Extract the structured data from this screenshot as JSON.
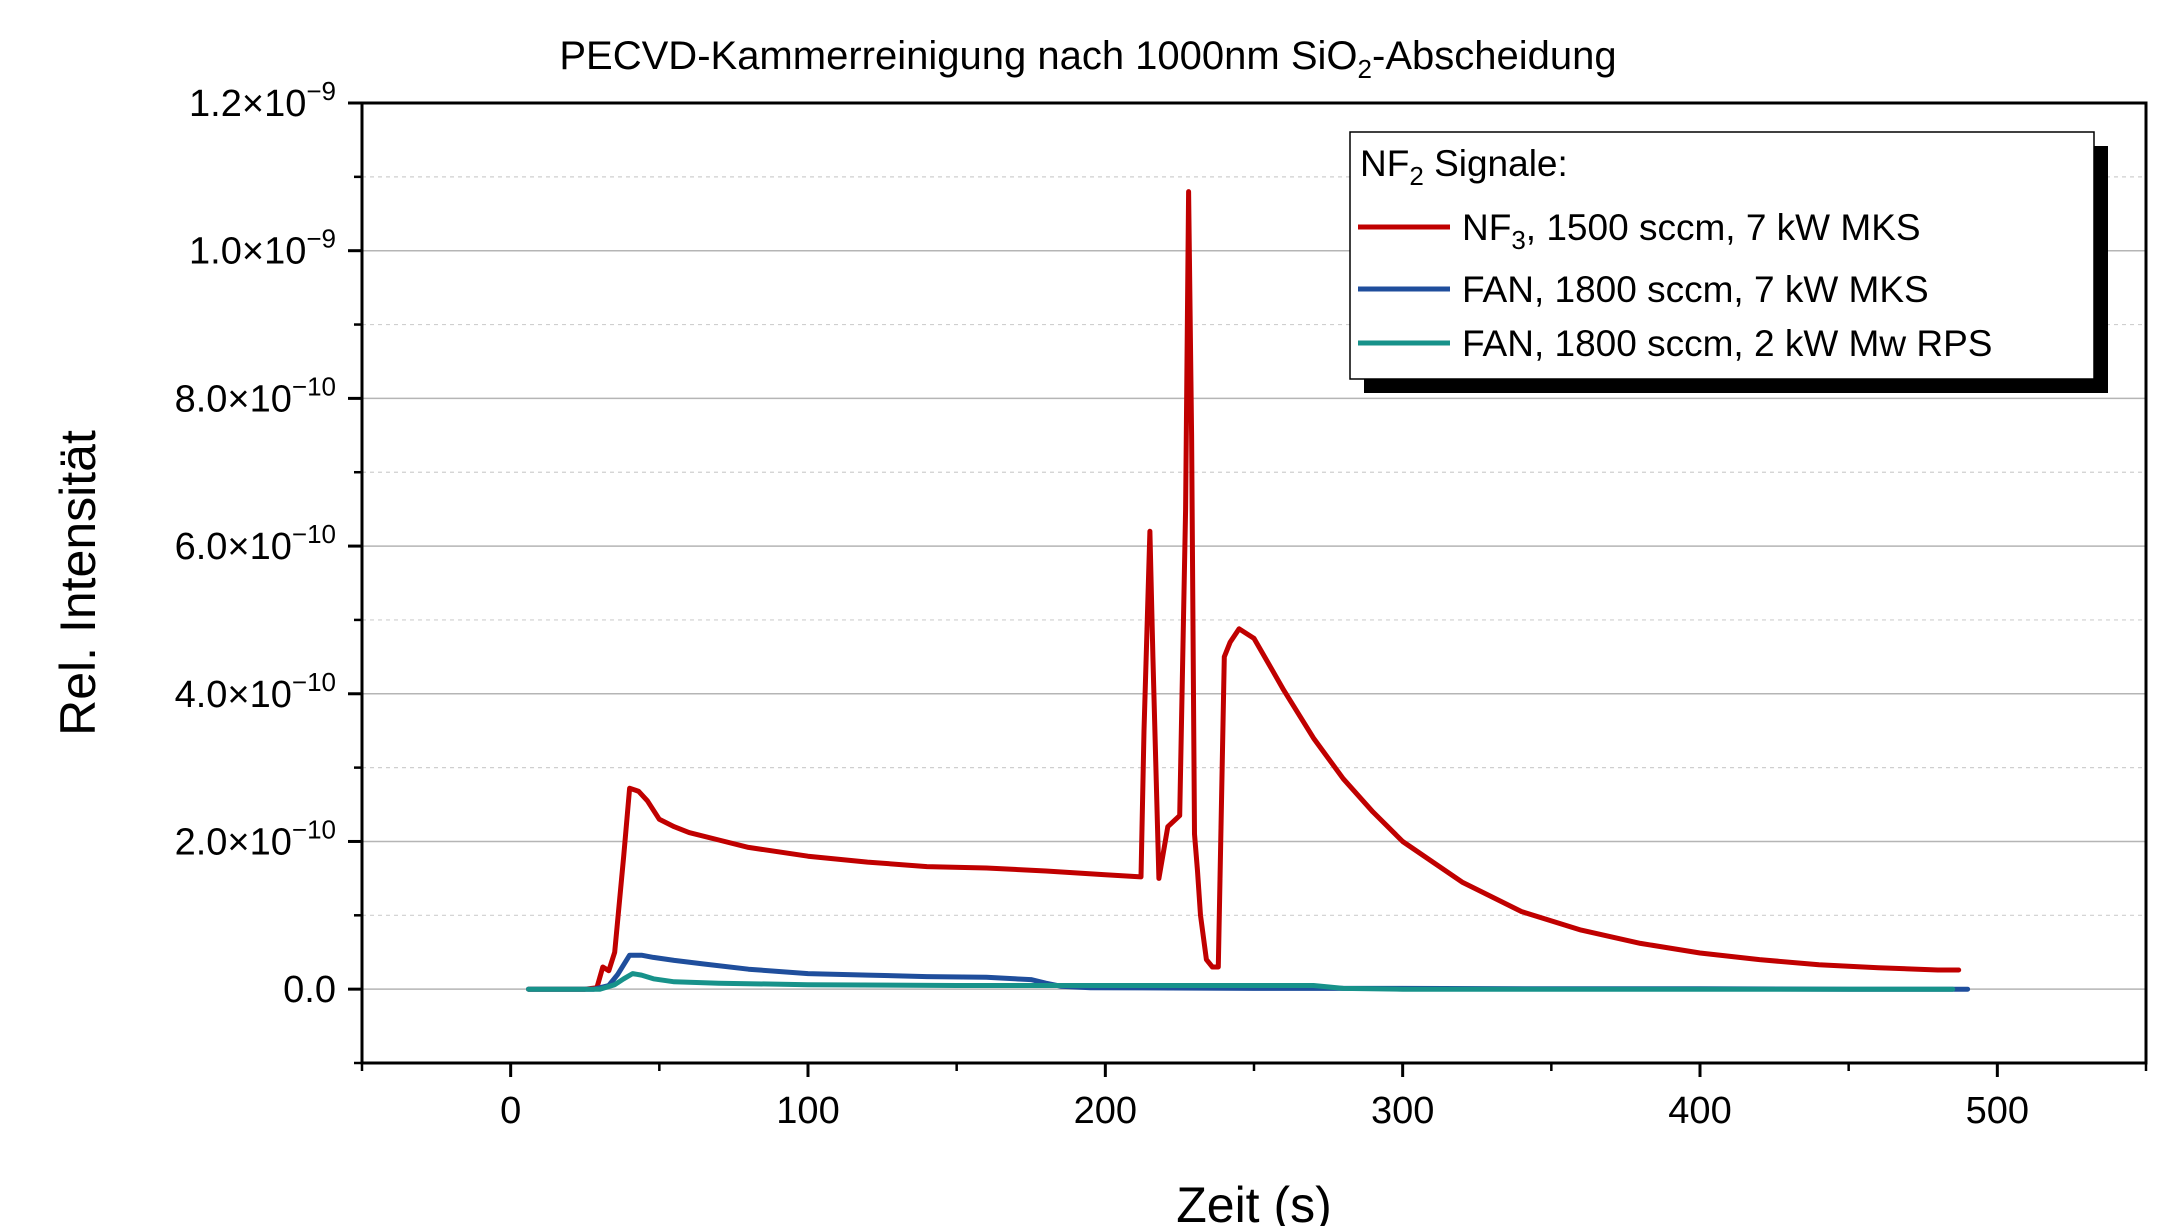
{
  "chart_data": {
    "type": "line",
    "title_parts": [
      "PECVD-Kammerreinigung nach 1000nm SiO",
      "2",
      "-Abscheidung"
    ],
    "xlabel": "Zeit (s)",
    "ylabel": "Rel. Intensität",
    "xlim": [
      -50,
      550
    ],
    "ylim": [
      -1e-10,
      1.2e-09
    ],
    "x_ticks": [
      0,
      100,
      200,
      300,
      400,
      500
    ],
    "x_tick_labels": [
      "0",
      "100",
      "200",
      "300",
      "400",
      "500"
    ],
    "y_ticks": [
      0,
      2e-10,
      4e-10,
      6e-10,
      8e-10,
      1e-09,
      1.2e-09
    ],
    "y_tick_labels": [
      {
        "mantissa": "0.0",
        "exponent": ""
      },
      {
        "mantissa": "2.0×10",
        "exponent": "−10"
      },
      {
        "mantissa": "4.0×10",
        "exponent": "−10"
      },
      {
        "mantissa": "6.0×10",
        "exponent": "−10"
      },
      {
        "mantissa": "8.0×10",
        "exponent": "−10"
      },
      {
        "mantissa": "1.0×10",
        "exponent": "−9"
      },
      {
        "mantissa": "1.2×10",
        "exponent": "−9"
      }
    ],
    "grid": {
      "major_y": true,
      "minor_y_dashed": true
    },
    "legend": {
      "placement": "top-right",
      "title_parts": [
        "NF",
        "2",
        " Signale:"
      ]
    },
    "series": [
      {
        "name_parts": [
          "NF",
          "3",
          ", 1500 sccm, 7 kW MKS"
        ],
        "color": "#C00000",
        "x": [
          6,
          25,
          29,
          31,
          33,
          35,
          38,
          40,
          43,
          46,
          50,
          55,
          60,
          70,
          80,
          100,
          120,
          140,
          160,
          180,
          200,
          212,
          213,
          215,
          216,
          218,
          221,
          225,
          227,
          228,
          229,
          230,
          231,
          232,
          234,
          236,
          238,
          240,
          242,
          245,
          250,
          255,
          260,
          270,
          280,
          290,
          300,
          320,
          340,
          360,
          380,
          400,
          420,
          440,
          460,
          480,
          487
        ],
        "y": [
          0,
          0,
          2e-12,
          3e-11,
          2.5e-11,
          5e-11,
          1.8e-10,
          2.72e-10,
          2.68e-10,
          2.55e-10,
          2.3e-10,
          2.2e-10,
          2.12e-10,
          2.02e-10,
          1.92e-10,
          1.8e-10,
          1.72e-10,
          1.66e-10,
          1.64e-10,
          1.6e-10,
          1.55e-10,
          1.52e-10,
          3.5e-10,
          6.2e-10,
          4.5e-10,
          1.5e-10,
          2.2e-10,
          2.35e-10,
          6.5e-10,
          1.08e-09,
          7.5e-10,
          2.1e-10,
          1.6e-10,
          1e-10,
          4e-11,
          3e-11,
          3e-11,
          4.5e-10,
          4.7e-10,
          4.88e-10,
          4.75e-10,
          4.4e-10,
          4.05e-10,
          3.4e-10,
          2.85e-10,
          2.4e-10,
          2e-10,
          1.45e-10,
          1.05e-10,
          8e-11,
          6.2e-11,
          4.9e-11,
          4e-11,
          3.3e-11,
          2.9e-11,
          2.6e-11,
          2.6e-11
        ]
      },
      {
        "name": "FAN, 1800 sccm, 7 kW MKS",
        "color": "#1F4E9C",
        "x": [
          6,
          28,
          33,
          36,
          40,
          44,
          48,
          55,
          65,
          80,
          100,
          120,
          140,
          160,
          175,
          180,
          185,
          195,
          250,
          300,
          350,
          400,
          450,
          490
        ],
        "y": [
          0,
          0,
          5e-12,
          2e-11,
          4.6e-11,
          4.6e-11,
          4.3e-11,
          3.9e-11,
          3.4e-11,
          2.7e-11,
          2.1e-11,
          1.9e-11,
          1.7e-11,
          1.6e-11,
          1.3e-11,
          8e-12,
          4e-12,
          2e-12,
          1e-12,
          1e-12,
          5e-13,
          5e-13,
          0,
          0
        ]
      },
      {
        "name": "FAN, 1800 sccm, 2 kW Mw RPS",
        "color": "#17928A",
        "x": [
          6,
          30,
          35,
          38,
          41,
          44,
          48,
          55,
          70,
          100,
          150,
          200,
          250,
          270,
          280,
          300,
          350,
          400,
          450,
          485
        ],
        "y": [
          0,
          0,
          6e-12,
          1.4e-11,
          2.1e-11,
          1.9e-11,
          1.4e-11,
          1e-11,
          8e-12,
          6e-12,
          5e-12,
          5e-12,
          5e-12,
          5e-12,
          1e-12,
          0,
          0,
          0,
          0,
          0
        ]
      }
    ]
  }
}
